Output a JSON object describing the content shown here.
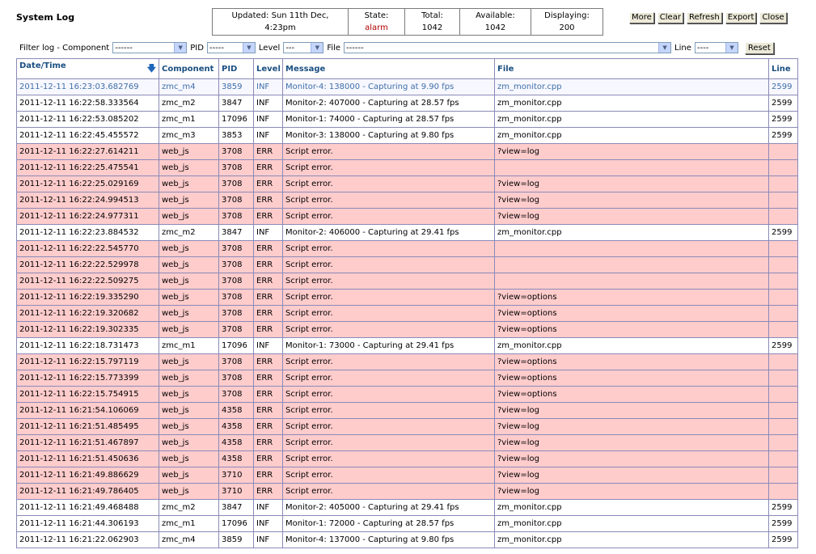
{
  "header": {
    "title": "System Log"
  },
  "stats": [
    {
      "label": "Updated: Sun 11th Dec,",
      "value": "4:23pm",
      "alarm": false
    },
    {
      "label": "State:",
      "value": "alarm",
      "alarm": true
    },
    {
      "label": "Total:",
      "value": "1042",
      "alarm": false
    },
    {
      "label": "Available:",
      "value": "1042",
      "alarm": false
    },
    {
      "label": "Displaying:",
      "value": "200",
      "alarm": false
    }
  ],
  "actions": {
    "more": "More",
    "clear": "Clear",
    "refresh": "Refresh",
    "export": "Export",
    "close": "Close"
  },
  "filters": {
    "prefix": "Filter log - Component",
    "component_value": "------",
    "pid_label": "PID",
    "pid_value": "-----",
    "level_label": "Level",
    "level_value": "---",
    "file_label": "File",
    "file_value": "------",
    "line_label": "Line",
    "line_value": "----",
    "reset": "Reset"
  },
  "table": {
    "columns": [
      "Date/Time",
      "Component",
      "PID",
      "Level",
      "Message",
      "File",
      "Line"
    ],
    "rows": [
      [
        "2011-12-11 16:23:03.682769",
        "zmc_m4",
        "3859",
        "INF",
        "Monitor-4: 138000 - Capturing at 9.90 fps",
        "zm_monitor.cpp",
        "2599"
      ],
      [
        "2011-12-11 16:22:58.333564",
        "zmc_m2",
        "3847",
        "INF",
        "Monitor-2: 407000 - Capturing at 28.57 fps",
        "zm_monitor.cpp",
        "2599"
      ],
      [
        "2011-12-11 16:22:53.085202",
        "zmc_m1",
        "17096",
        "INF",
        "Monitor-1: 74000 - Capturing at 28.57 fps",
        "zm_monitor.cpp",
        "2599"
      ],
      [
        "2011-12-11 16:22:45.455572",
        "zmc_m3",
        "3853",
        "INF",
        "Monitor-3: 138000 - Capturing at 9.80 fps",
        "zm_monitor.cpp",
        "2599"
      ],
      [
        "2011-12-11 16:22:27.614211",
        "web_js",
        "3708",
        "ERR",
        "Script error.",
        "?view=log",
        ""
      ],
      [
        "2011-12-11 16:22:25.475541",
        "web_js",
        "3708",
        "ERR",
        "Script error.",
        "",
        ""
      ],
      [
        "2011-12-11 16:22:25.029169",
        "web_js",
        "3708",
        "ERR",
        "Script error.",
        "?view=log",
        ""
      ],
      [
        "2011-12-11 16:22:24.994513",
        "web_js",
        "3708",
        "ERR",
        "Script error.",
        "?view=log",
        ""
      ],
      [
        "2011-12-11 16:22:24.977311",
        "web_js",
        "3708",
        "ERR",
        "Script error.",
        "?view=log",
        ""
      ],
      [
        "2011-12-11 16:22:23.884532",
        "zmc_m2",
        "3847",
        "INF",
        "Monitor-2: 406000 - Capturing at 29.41 fps",
        "zm_monitor.cpp",
        "2599"
      ],
      [
        "2011-12-11 16:22:22.545770",
        "web_js",
        "3708",
        "ERR",
        "Script error.",
        "",
        ""
      ],
      [
        "2011-12-11 16:22:22.529978",
        "web_js",
        "3708",
        "ERR",
        "Script error.",
        "",
        ""
      ],
      [
        "2011-12-11 16:22:22.509275",
        "web_js",
        "3708",
        "ERR",
        "Script error.",
        "",
        ""
      ],
      [
        "2011-12-11 16:22:19.335290",
        "web_js",
        "3708",
        "ERR",
        "Script error.",
        "?view=options",
        ""
      ],
      [
        "2011-12-11 16:22:19.320682",
        "web_js",
        "3708",
        "ERR",
        "Script error.",
        "?view=options",
        ""
      ],
      [
        "2011-12-11 16:22:19.302335",
        "web_js",
        "3708",
        "ERR",
        "Script error.",
        "?view=options",
        ""
      ],
      [
        "2011-12-11 16:22:18.731473",
        "zmc_m1",
        "17096",
        "INF",
        "Monitor-1: 73000 - Capturing at 29.41 fps",
        "zm_monitor.cpp",
        "2599"
      ],
      [
        "2011-12-11 16:22:15.797119",
        "web_js",
        "3708",
        "ERR",
        "Script error.",
        "?view=options",
        ""
      ],
      [
        "2011-12-11 16:22:15.773399",
        "web_js",
        "3708",
        "ERR",
        "Script error.",
        "?view=options",
        ""
      ],
      [
        "2011-12-11 16:22:15.754915",
        "web_js",
        "3708",
        "ERR",
        "Script error.",
        "?view=options",
        ""
      ],
      [
        "2011-12-11 16:21:54.106069",
        "web_js",
        "4358",
        "ERR",
        "Script error.",
        "?view=log",
        ""
      ],
      [
        "2011-12-11 16:21:51.485495",
        "web_js",
        "4358",
        "ERR",
        "Script error.",
        "?view=log",
        ""
      ],
      [
        "2011-12-11 16:21:51.467897",
        "web_js",
        "4358",
        "ERR",
        "Script error.",
        "?view=log",
        ""
      ],
      [
        "2011-12-11 16:21:51.450636",
        "web_js",
        "4358",
        "ERR",
        "Script error.",
        "?view=log",
        ""
      ],
      [
        "2011-12-11 16:21:49.886629",
        "web_js",
        "3710",
        "ERR",
        "Script error.",
        "?view=log",
        ""
      ],
      [
        "2011-12-11 16:21:49.786405",
        "web_js",
        "3710",
        "ERR",
        "Script error.",
        "?view=log",
        ""
      ],
      [
        "2011-12-11 16:21:49.468488",
        "zmc_m2",
        "3847",
        "INF",
        "Monitor-2: 405000 - Capturing at 29.41 fps",
        "zm_monitor.cpp",
        "2599"
      ],
      [
        "2011-12-11 16:21:44.306193",
        "zmc_m1",
        "17096",
        "INF",
        "Monitor-1: 72000 - Capturing at 28.57 fps",
        "zm_monitor.cpp",
        "2599"
      ],
      [
        "2011-12-11 16:21:22.062903",
        "zmc_m4",
        "3859",
        "INF",
        "Monitor-4: 137000 - Capturing at 9.80 fps",
        "zm_monitor.cpp",
        "2599"
      ]
    ]
  },
  "colors": {
    "err_row": "#ffcccc",
    "header_text": "#1a4f80",
    "alarm": "#b00000",
    "highlight_text": "#3e6fa8"
  }
}
